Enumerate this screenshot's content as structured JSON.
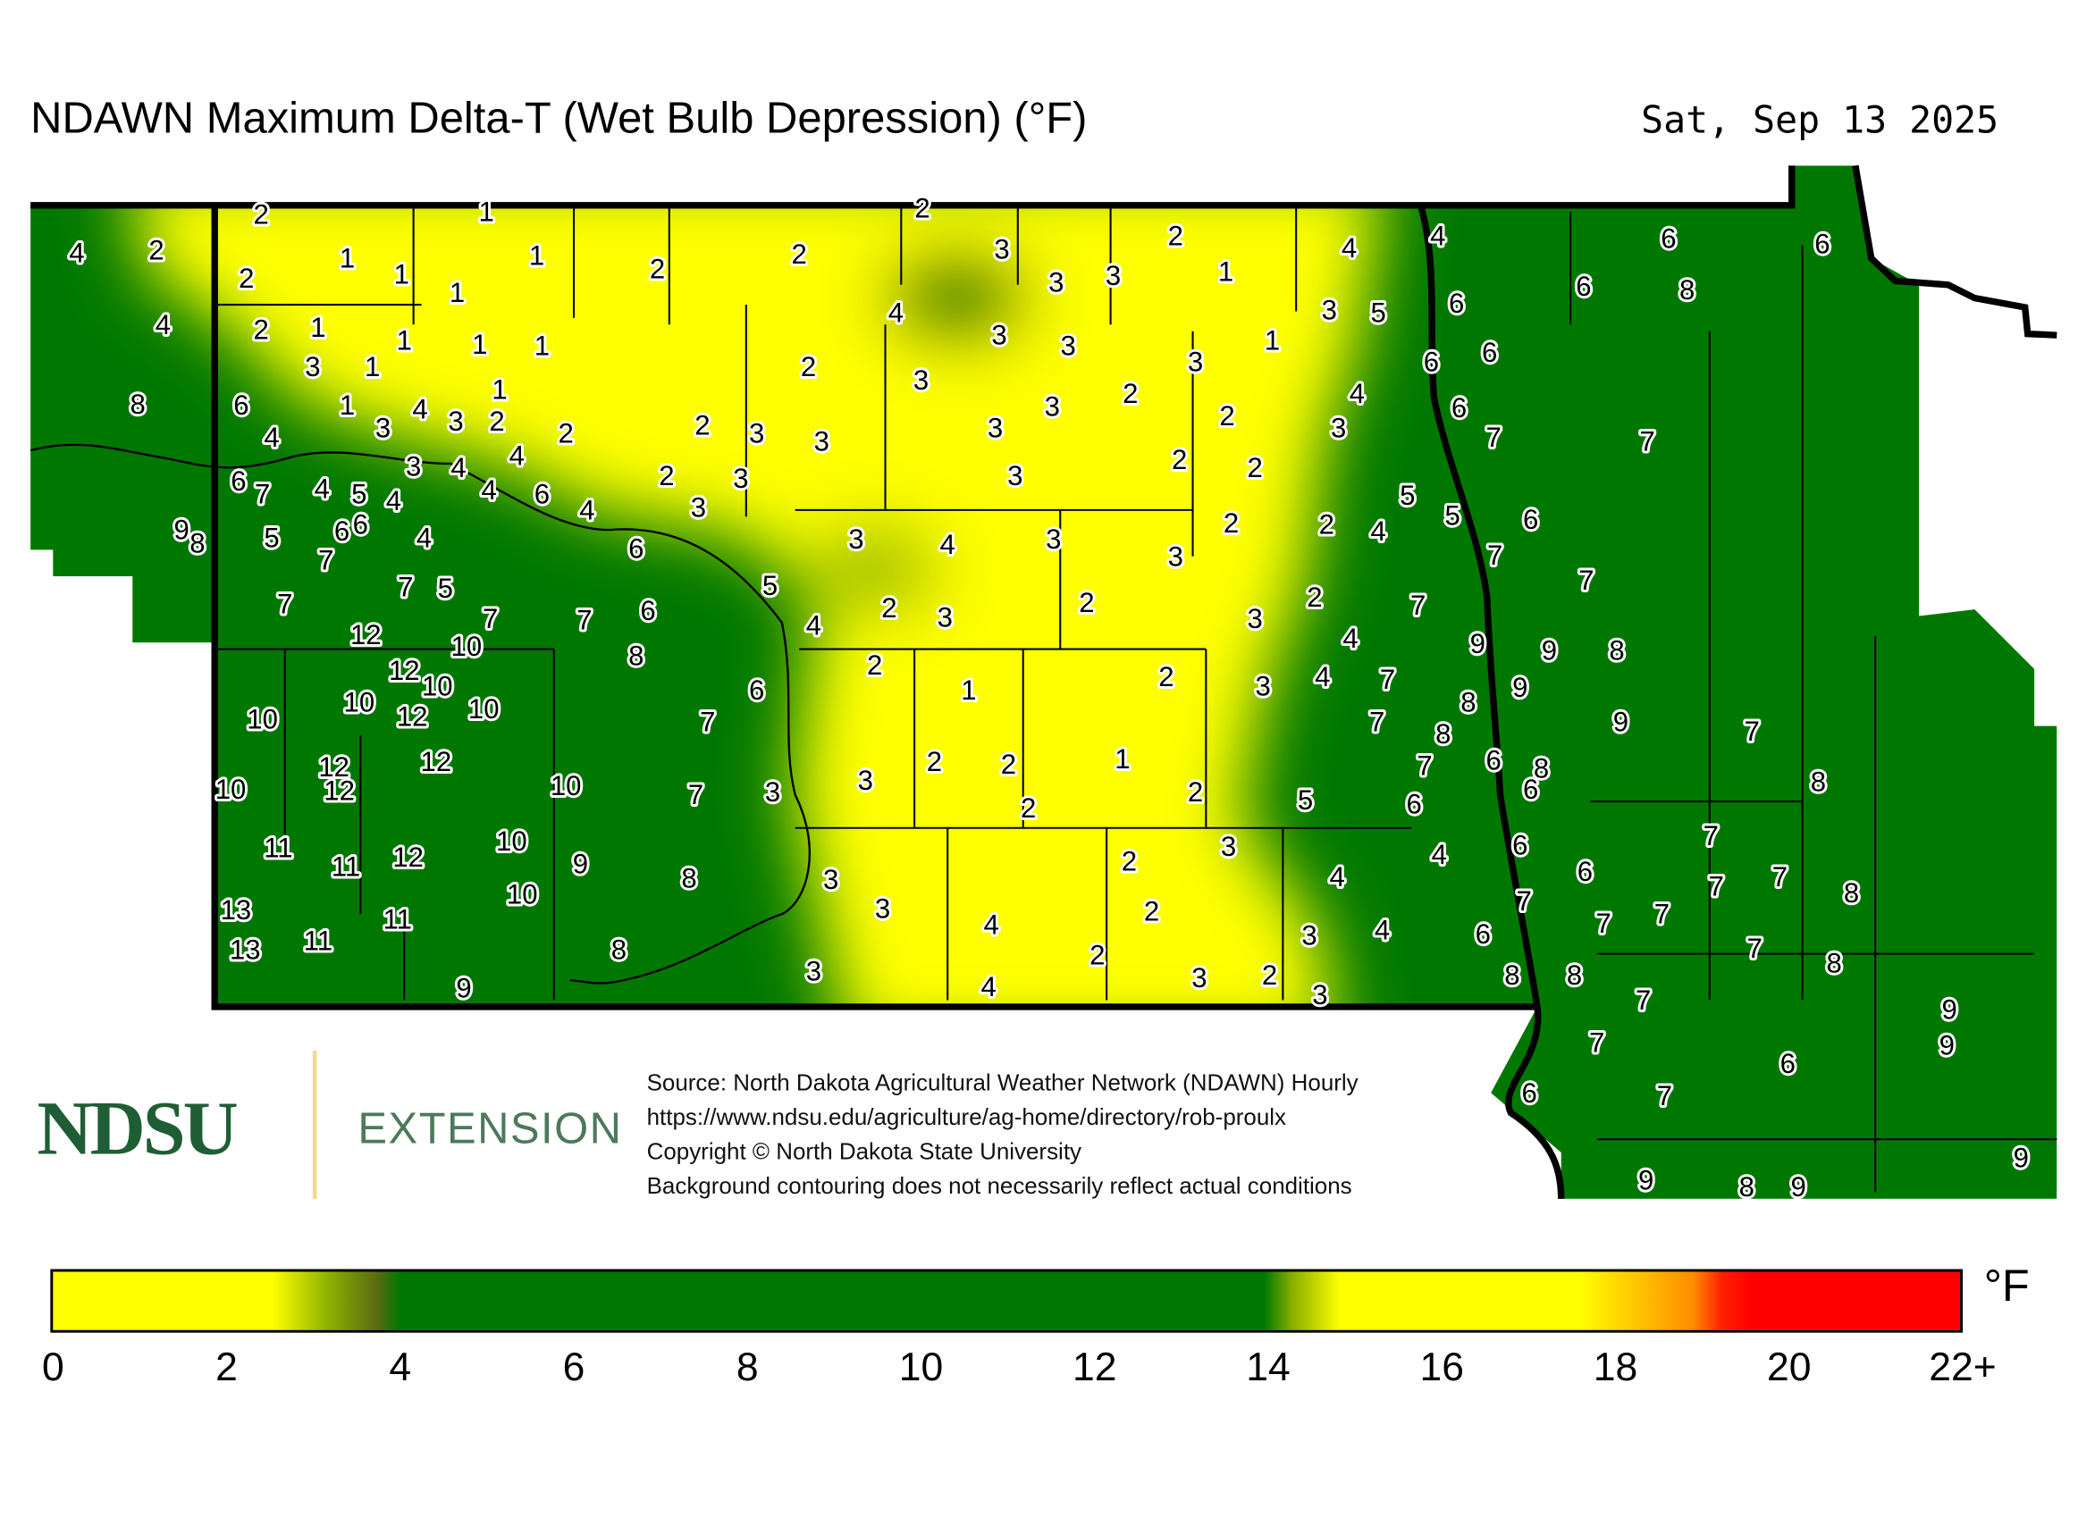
{
  "header": {
    "title": "NDAWN Maximum Delta-T (Wet Bulb Depression) (°F)",
    "date": "Sat, Sep 13 2025"
  },
  "map": {
    "colors": {
      "low": "#ffff00",
      "mid": "#007800",
      "high": "#ff0000",
      "border": "#000000"
    },
    "station_values": [
      4,
      2,
      4,
      8,
      9,
      8,
      2,
      1,
      1,
      2,
      1,
      1,
      1,
      2,
      1,
      3,
      1,
      1,
      1,
      1,
      1,
      1,
      6,
      4,
      3,
      4,
      3,
      2,
      2,
      3,
      4,
      4,
      6,
      7,
      4,
      5,
      4,
      4,
      6,
      4,
      5,
      6,
      6,
      7,
      4,
      7,
      7,
      5,
      7,
      7,
      6,
      8,
      12,
      10,
      12,
      10,
      10,
      12,
      10,
      10,
      12,
      12,
      12,
      10,
      10,
      11,
      11,
      12,
      10,
      9,
      13,
      13,
      11,
      11,
      10,
      9,
      8,
      8,
      7,
      7,
      6,
      3,
      3,
      3,
      6,
      5,
      4,
      2,
      2,
      2,
      3,
      3,
      3,
      2,
      1,
      4,
      3,
      3,
      2,
      3,
      2,
      3,
      3,
      2,
      3,
      3,
      3,
      3,
      3,
      2,
      3,
      1,
      2,
      2,
      2,
      2,
      4,
      3,
      5,
      4,
      3,
      2,
      4,
      5,
      5,
      3,
      4,
      3,
      3,
      2,
      3,
      2,
      3,
      2,
      2,
      1,
      2,
      3,
      4,
      4,
      7,
      7,
      7,
      8,
      8,
      7,
      6,
      6,
      8,
      6,
      5,
      3,
      2,
      2,
      2,
      1,
      2,
      2,
      3,
      2,
      4,
      4,
      4,
      3,
      3,
      4,
      2,
      4,
      3,
      2,
      3,
      6,
      8,
      8,
      6,
      7,
      4,
      6,
      6,
      6,
      6,
      7,
      7,
      6,
      7,
      7,
      9,
      9,
      9,
      8,
      9,
      7,
      6,
      6,
      8,
      6,
      8,
      7,
      7,
      7,
      7,
      7,
      6,
      8,
      7,
      8,
      7,
      7,
      9,
      9,
      6,
      7,
      6,
      9,
      8,
      9,
      9
    ]
  },
  "logo": {
    "ndsu": "NDSU",
    "extension": "EXTENSION"
  },
  "source": {
    "line1": "Source: North Dakota Agricultural Weather Network (NDAWN) Hourly",
    "line2": "https://www.ndsu.edu/agriculture/ag-home/directory/rob-proulx",
    "line3": "Copyright © North Dakota State University",
    "line4": "Background contouring does not necessarily reflect actual conditions"
  },
  "colorbar": {
    "unit": "°F",
    "ticks": [
      "0",
      "2",
      "4",
      "6",
      "8",
      "10",
      "12",
      "14",
      "16",
      "18",
      "20",
      "22+"
    ],
    "range": [
      0,
      22
    ]
  }
}
